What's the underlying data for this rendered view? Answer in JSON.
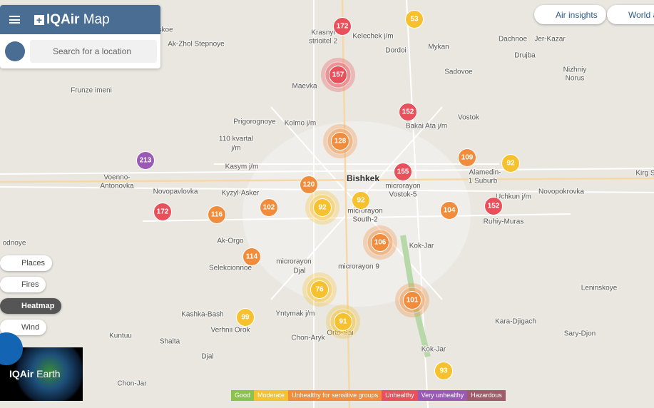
{
  "header": {
    "logo": "IQAir",
    "title": "Map"
  },
  "search": {
    "placeholder": "Search for a location"
  },
  "top_buttons": [
    "Air insights",
    "World a"
  ],
  "layers": [
    "Places",
    "Fires",
    "Heatmap",
    "Wind"
  ],
  "earth": {
    "logo": "IQAir",
    "title": "Earth"
  },
  "places": [
    "skoe",
    "Ak-Zhol Stepnoye",
    "Krasnyi",
    "strioitel 2",
    "Kelechek j/m",
    "Dordoi",
    "Mykan",
    "Dachnoe",
    "Jer-Kazar",
    "Drujba",
    "Sadovoe",
    "Nizhniy",
    "Norus",
    "Frunze imeni",
    "Maevka",
    "Bakai Ata j/m",
    "Vostok",
    "Prigorognoye",
    "Kolmo j/m",
    "110 kvartal",
    "j/m",
    "Kasym j/m",
    "Alamedin-",
    "1 Suburb",
    "Bishkek",
    "microrayon",
    "Vostok-5",
    "Kirg S",
    "Voenno-",
    "Antonovka",
    "Novopavlovka",
    "Kyzyl-Asker",
    "Uchkun j/m",
    "Novopokrovka",
    "microrayon",
    "South-2",
    "Ruhiy-Muras",
    "Ak-Orgo",
    "Kok-Jar",
    "odnoye",
    "Selekcionnoe",
    "microrayon",
    "Djal",
    "microrayon 9",
    "Leninskoye",
    "Kashka-Bash",
    "Yntymak j/m",
    "Kara-Djigach",
    "Verhnii Orok",
    "Orto-Sai",
    "Sary-Djon",
    "Kuntuu",
    "Shalta",
    "Chon-Aryk",
    "Kok-Jar",
    "Djal",
    "Chon-Jar"
  ],
  "markers": [
    172,
    53,
    157,
    152,
    128,
    213,
    109,
    92,
    155,
    120,
    92,
    92,
    172,
    116,
    102,
    104,
    152,
    106,
    114,
    76,
    101,
    99,
    91,
    93
  ],
  "legend": [
    {
      "label": "Good",
      "color": "#8bc34a"
    },
    {
      "label": "Moderate",
      "color": "#f5c12e"
    },
    {
      "label": "Unhealthy for sensitive groups",
      "color": "#f08c3c"
    },
    {
      "label": "Unhealthy",
      "color": "#e8505b"
    },
    {
      "label": "Very unhealthy",
      "color": "#9b59b6"
    },
    {
      "label": "Hazardous",
      "color": "#a05a6a"
    }
  ]
}
